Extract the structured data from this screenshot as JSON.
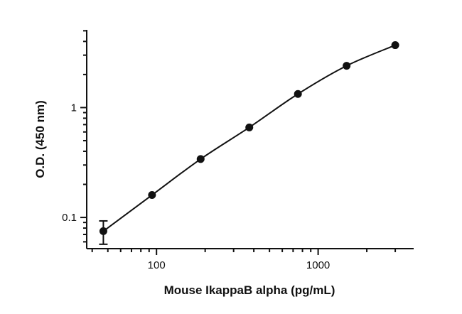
{
  "chart_data": {
    "type": "scatter",
    "xlabel": "Mouse IkappaB alpha (pg/mL)",
    "ylabel": "O.D. (450 nm)",
    "x_scale": "log",
    "y_scale": "log",
    "xlim": [
      37,
      3900
    ],
    "ylim": [
      0.052,
      5.1
    ],
    "x_ticks": [
      {
        "value": 100,
        "label": "100"
      },
      {
        "value": 1000,
        "label": "1000"
      }
    ],
    "y_ticks": [
      {
        "value": 0.1,
        "label": "0.1"
      },
      {
        "value": 1,
        "label": "1"
      }
    ],
    "grid": false,
    "series": [
      {
        "points": [
          {
            "x": 46.9,
            "y": 0.075,
            "err": 0.018
          },
          {
            "x": 93.8,
            "y": 0.16
          },
          {
            "x": 187.5,
            "y": 0.34
          },
          {
            "x": 375,
            "y": 0.66
          },
          {
            "x": 750,
            "y": 1.33
          },
          {
            "x": 1500,
            "y": 2.4
          },
          {
            "x": 3000,
            "y": 3.7
          }
        ]
      }
    ],
    "fit_curve": true
  }
}
